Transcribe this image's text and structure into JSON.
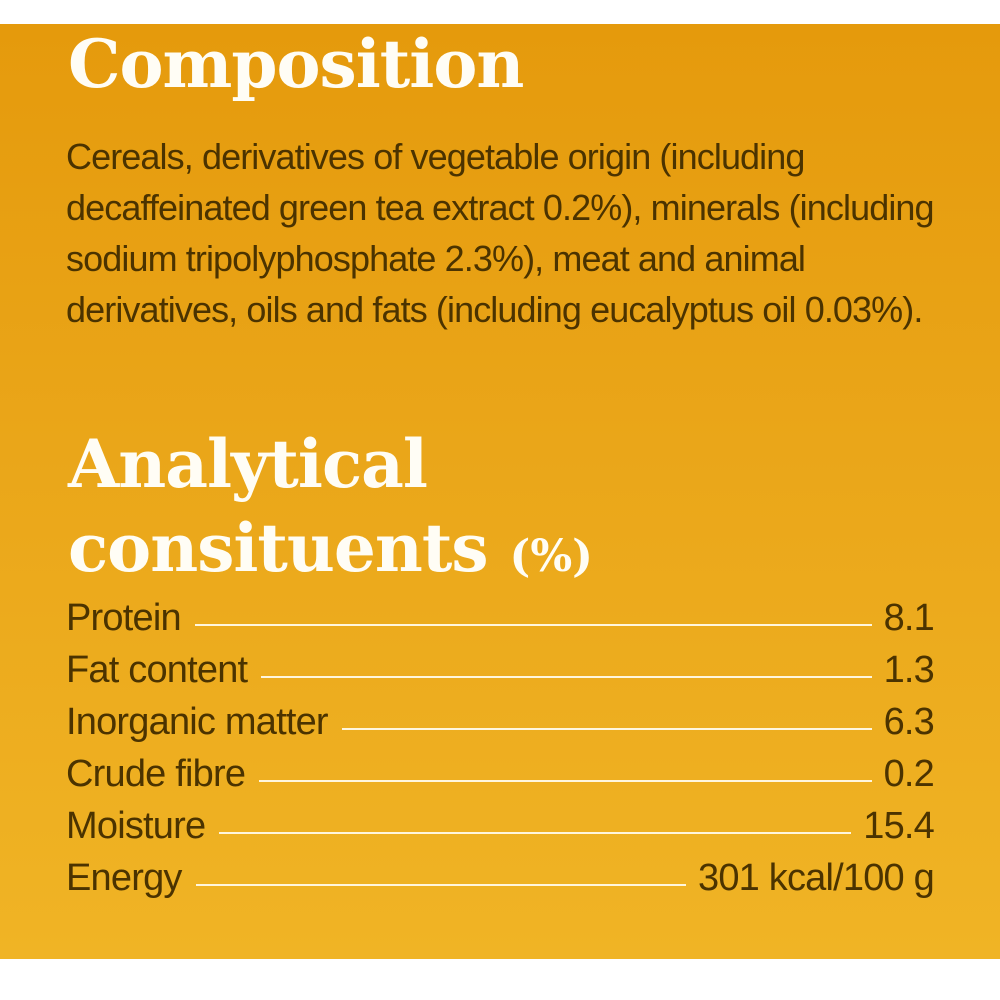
{
  "composition": {
    "heading": "Composition",
    "text": "Cereals, derivatives of vegetable origin (including decaffeinated green tea extract 0.2%), minerals (including sodium tripolyphosphate 2.3%), meat and animal derivatives, oils and fats (including eucalyptus oil 0.03%)."
  },
  "analytical": {
    "heading_line1": "Analytical",
    "heading_line2": "consituents",
    "unit": "(%)",
    "rows": [
      {
        "label": "Protein",
        "value": "8.1"
      },
      {
        "label": "Fat content",
        "value": "1.3"
      },
      {
        "label": "Inorganic matter",
        "value": "6.3"
      },
      {
        "label": "Crude fibre",
        "value": "0.2"
      },
      {
        "label": "Moisture",
        "value": "15.4"
      },
      {
        "label": "Energy",
        "value": "301 kcal/100 g"
      }
    ]
  },
  "colors": {
    "background_top": "#e59a0c",
    "background_bottom": "#f0b425",
    "heading": "#fffdf5",
    "body_text": "#4b3300",
    "leader_line": "#fff6dd"
  }
}
